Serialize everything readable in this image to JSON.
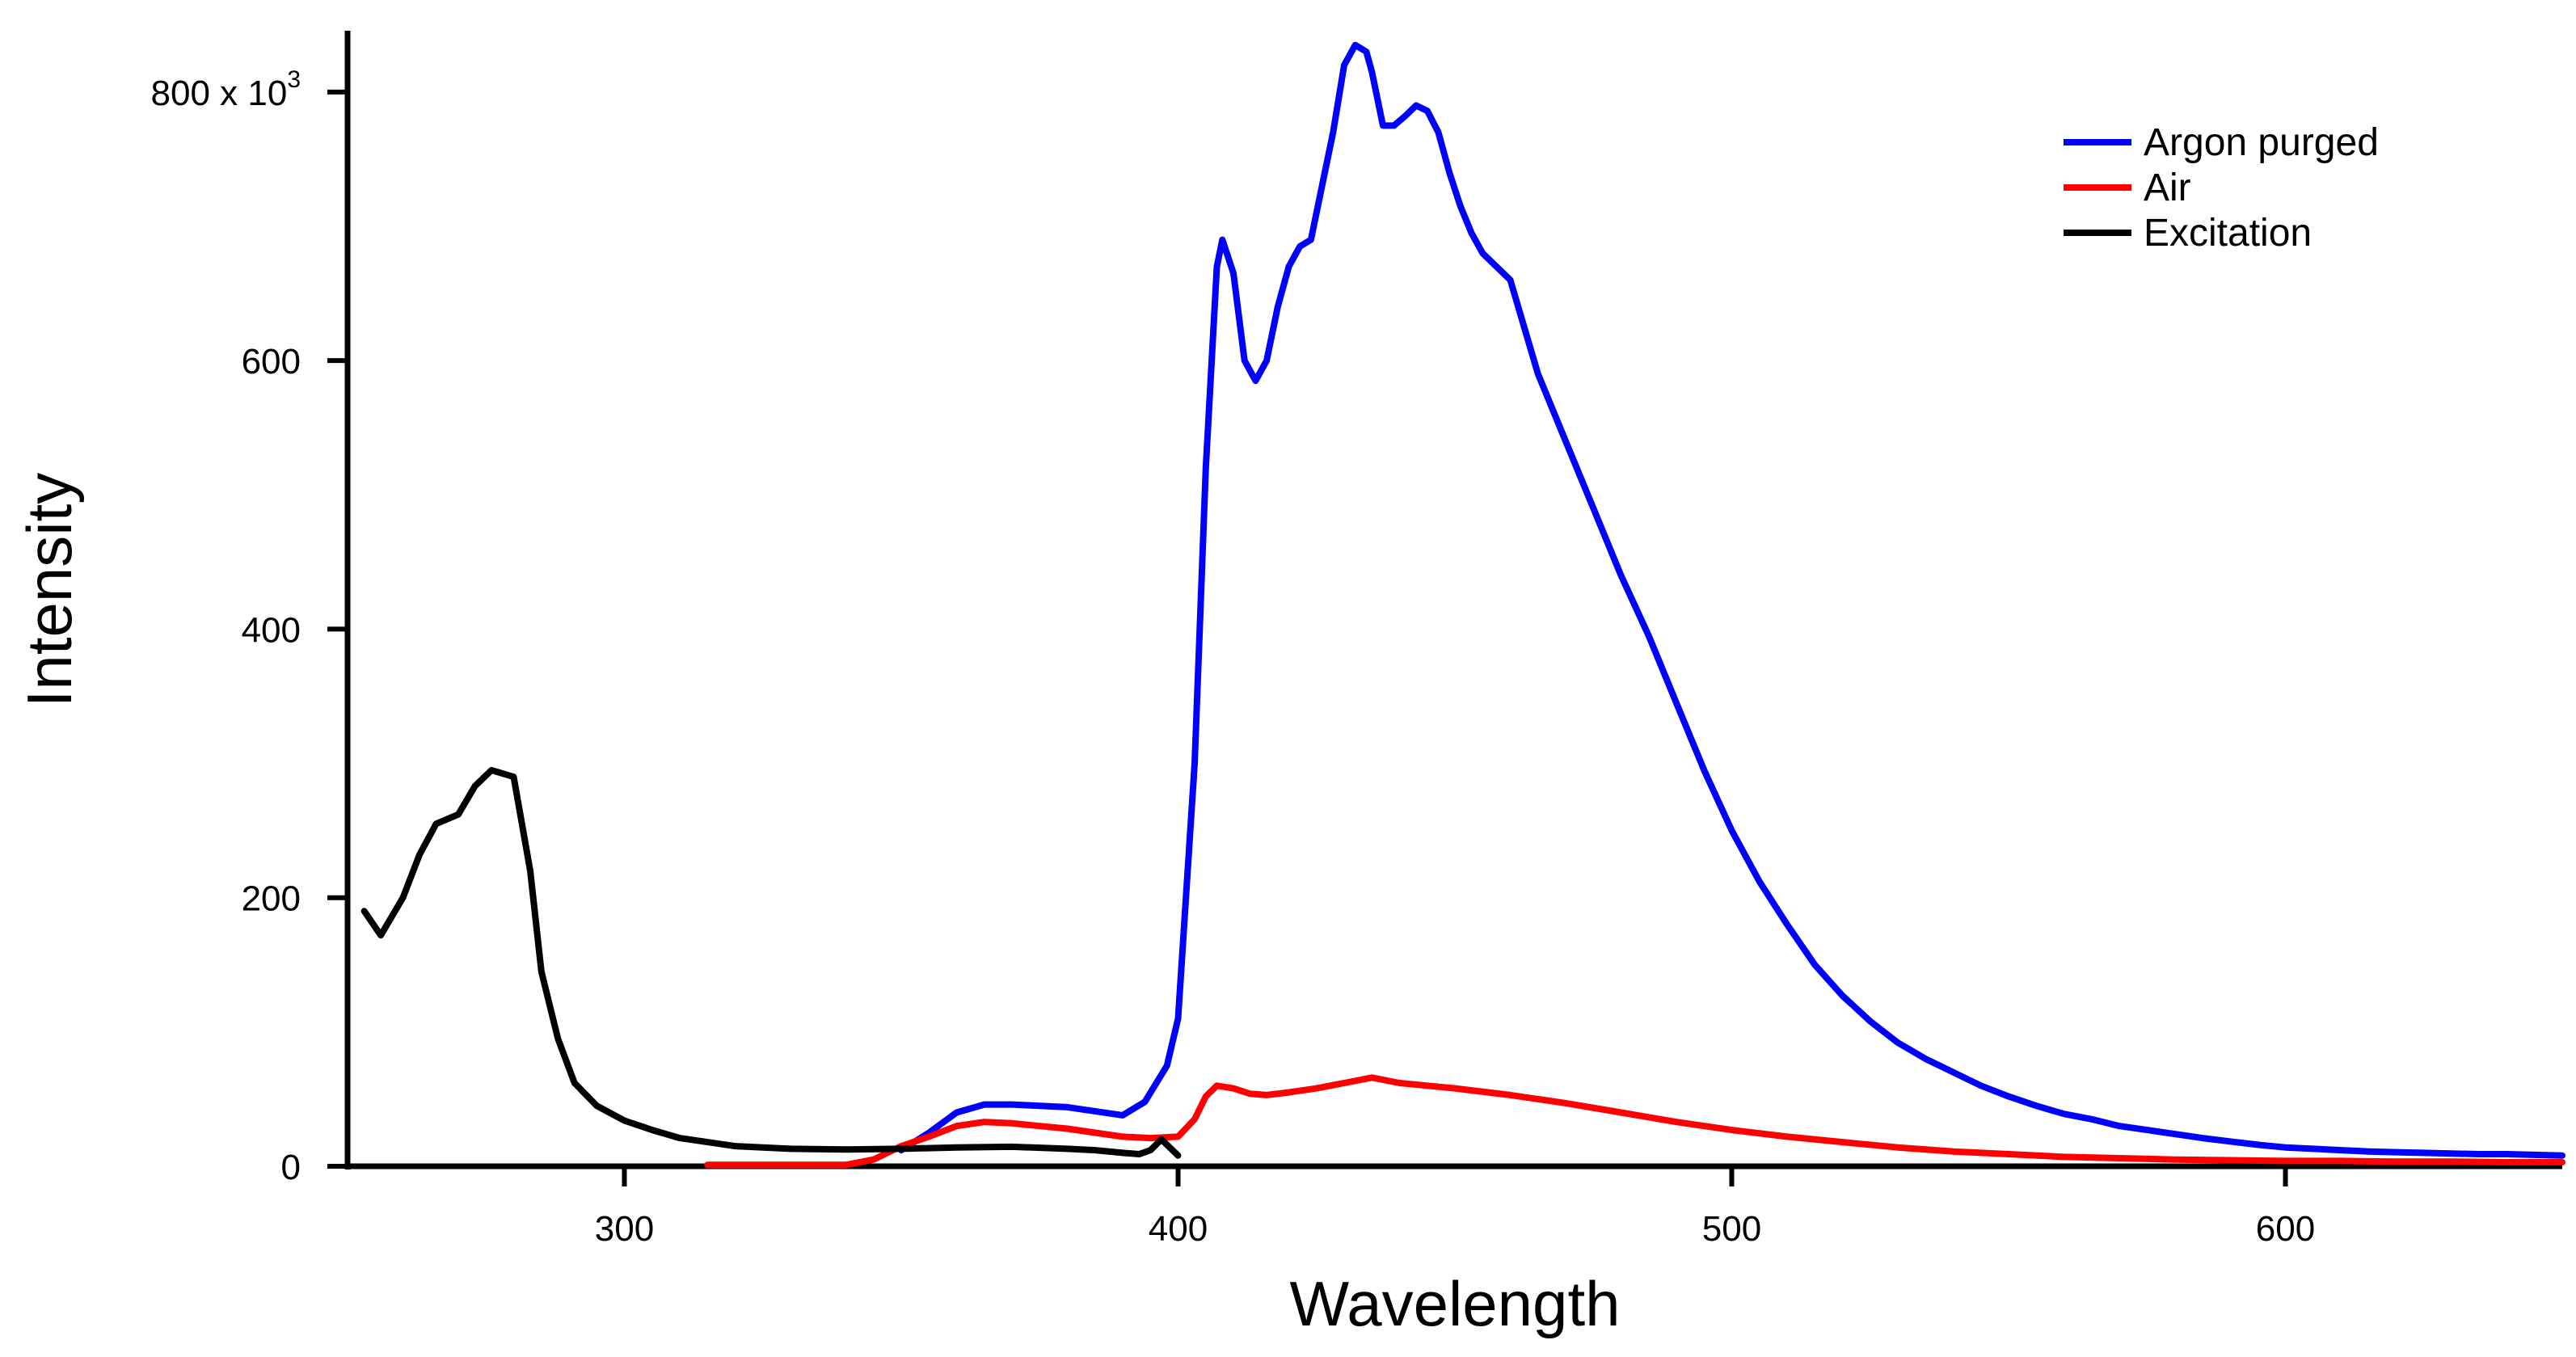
{
  "chart_data": {
    "type": "line",
    "title": "",
    "xlabel": "Wavelength",
    "ylabel": "Intensity",
    "xlim": [
      250,
      650
    ],
    "ylim": [
      0,
      830000
    ],
    "grid": false,
    "legend_position": "top-right",
    "x_ticks": [
      {
        "value": 300,
        "label": "300"
      },
      {
        "value": 400,
        "label": "400"
      },
      {
        "value": 500,
        "label": "500"
      },
      {
        "value": 600,
        "label": "600"
      }
    ],
    "y_ticks": [
      {
        "value": 0,
        "label": "0"
      },
      {
        "value": 200000,
        "label": "200"
      },
      {
        "value": 400000,
        "label": "400"
      },
      {
        "value": 600000,
        "label": "600"
      },
      {
        "value": 800000,
        "label": "800 x 10",
        "exponent": "3"
      }
    ],
    "series": [
      {
        "name": "Argon purged",
        "color": "#0000ff",
        "x": [
          350,
          355,
          360,
          365,
          370,
          375,
          380,
          385,
          390,
          394,
          398,
          400,
          403,
          405,
          407,
          408,
          410,
          412,
          414,
          416,
          418,
          420,
          422,
          424,
          426,
          428,
          430,
          432,
          434,
          435,
          437,
          439,
          441,
          443,
          445,
          447,
          449,
          451,
          453,
          455,
          460,
          465,
          470,
          475,
          480,
          485,
          490,
          495,
          500,
          505,
          510,
          515,
          520,
          525,
          530,
          535,
          540,
          545,
          550,
          555,
          560,
          565,
          570,
          575,
          580,
          585,
          590,
          595,
          600,
          605,
          610,
          615,
          620,
          625,
          630,
          635,
          640,
          645,
          650
        ],
        "y": [
          12000,
          25000,
          40000,
          46000,
          46000,
          45000,
          44000,
          41000,
          38000,
          48000,
          75000,
          110000,
          300000,
          520000,
          670000,
          690000,
          665000,
          600000,
          585000,
          600000,
          640000,
          670000,
          685000,
          690000,
          730000,
          770000,
          820000,
          835000,
          830000,
          815000,
          775000,
          775000,
          782000,
          790000,
          786000,
          770000,
          740000,
          715000,
          695000,
          680000,
          660000,
          590000,
          540000,
          490000,
          440000,
          395000,
          345000,
          295000,
          250000,
          212000,
          180000,
          150000,
          127000,
          108000,
          92000,
          80000,
          70000,
          60000,
          52000,
          45000,
          39000,
          35000,
          30000,
          27000,
          24000,
          21000,
          18500,
          16000,
          14000,
          13000,
          12000,
          11000,
          10500,
          10000,
          9500,
          9000,
          9000,
          8500,
          8000
        ]
      },
      {
        "name": "Air",
        "color": "#ff0000",
        "x": [
          315,
          320,
          330,
          340,
          345,
          350,
          355,
          360,
          365,
          370,
          375,
          380,
          385,
          390,
          395,
          400,
          403,
          405,
          407,
          410,
          413,
          416,
          420,
          425,
          430,
          435,
          440,
          445,
          450,
          460,
          470,
          480,
          490,
          500,
          510,
          520,
          530,
          540,
          550,
          560,
          570,
          580,
          590,
          600,
          610,
          620,
          630,
          640,
          650
        ],
        "y": [
          1000,
          1000,
          1000,
          1000,
          5000,
          15000,
          22000,
          30000,
          33000,
          32000,
          30000,
          28000,
          25000,
          22000,
          21000,
          22000,
          35000,
          52000,
          60000,
          58000,
          54000,
          53000,
          55000,
          58000,
          62000,
          66000,
          62000,
          60000,
          58000,
          53000,
          47000,
          40000,
          33000,
          27000,
          22000,
          18000,
          14000,
          11000,
          9000,
          7000,
          6000,
          5000,
          4500,
          4000,
          4000,
          3500,
          3500,
          3000,
          3000
        ]
      },
      {
        "name": "Excitation",
        "color": "#000000",
        "x": [
          253,
          256,
          260,
          263,
          266,
          270,
          273,
          276,
          280,
          283,
          285,
          288,
          291,
          295,
          300,
          305,
          310,
          320,
          330,
          340,
          350,
          360,
          370,
          380,
          385,
          390,
          393,
          395,
          397,
          400
        ],
        "y": [
          190000,
          172000,
          200000,
          232000,
          255000,
          262000,
          283000,
          295000,
          290000,
          220000,
          145000,
          95000,
          62000,
          45000,
          34000,
          27000,
          21000,
          15000,
          13000,
          12500,
          13000,
          14000,
          14500,
          13000,
          12000,
          10000,
          9000,
          12000,
          20000,
          8000
        ]
      }
    ]
  }
}
